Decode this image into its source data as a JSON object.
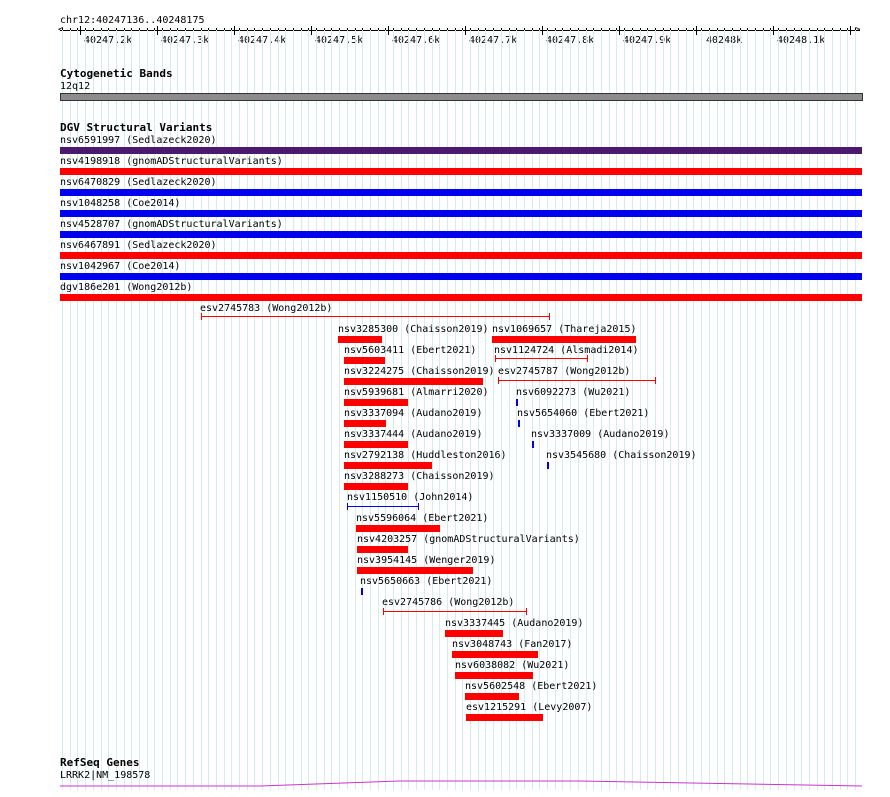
{
  "ruler": {
    "locus": "chr12:40247136..40248175",
    "labels": [
      "40247.2k",
      "40247.3k",
      "40247.4k",
      "40247.5k",
      "40247.6k",
      "40247.7k",
      "40247.8k",
      "40247.9k",
      "40248k",
      "40248.1k"
    ]
  },
  "tracks": {
    "cytoband": {
      "title": "Cytogenetic Bands",
      "band": "12q12"
    },
    "dgv": {
      "title": "DGV Structural Variants",
      "full_rows": [
        {
          "label": "nsv6591997 (Sedlazeck2020)",
          "color": "#4b1a6e"
        },
        {
          "label": "nsv4198918 (gnomADStructuralVariants)",
          "color": "#ff0000"
        },
        {
          "label": "nsv6470829 (Sedlazeck2020)",
          "color": "#0000ee"
        },
        {
          "label": "nsv1048258 (Coe2014)",
          "color": "#0000ee"
        },
        {
          "label": "nsv4528707 (gnomADStructuralVariants)",
          "color": "#0000ee"
        },
        {
          "label": "nsv6467891 (Sedlazeck2020)",
          "color": "#ff0000"
        },
        {
          "label": "nsv1042967 (Coe2014)",
          "color": "#0000ee"
        },
        {
          "label": "dgv186e201 (Wong2012b)",
          "color": "#ff0000"
        }
      ],
      "features": [
        {
          "label": "esv2745783 (Wong2012b)",
          "color": "#ff0000",
          "style": "line"
        },
        {
          "label": "nsv3285300 (Chaisson2019)",
          "color": "#ff0000",
          "style": "bar"
        },
        {
          "label": "nsv1069657 (Thareja2015)",
          "color": "#ff0000",
          "style": "bar"
        },
        {
          "label": "nsv5603411 (Ebert2021)",
          "color": "#ff0000",
          "style": "bar"
        },
        {
          "label": "nsv1124724 (Alsmadi2014)",
          "color": "#ff0000",
          "style": "line"
        },
        {
          "label": "nsv3224275 (Chaisson2019)",
          "color": "#ff0000",
          "style": "bar"
        },
        {
          "label": "esv2745787 (Wong2012b)",
          "color": "#ff0000",
          "style": "line"
        },
        {
          "label": "nsv5939681 (Almarri2020)",
          "color": "#ff0000",
          "style": "bar"
        },
        {
          "label": "nsv6092273 (Wu2021)",
          "color": "#0000ee",
          "style": "bar"
        },
        {
          "label": "nsv3337094 (Audano2019)",
          "color": "#ff0000",
          "style": "bar"
        },
        {
          "label": "nsv5654060 (Ebert2021)",
          "color": "#0000ee",
          "style": "bar"
        },
        {
          "label": "nsv3337444 (Audano2019)",
          "color": "#ff0000",
          "style": "bar"
        },
        {
          "label": "nsv3337009 (Audano2019)",
          "color": "#0000ee",
          "style": "bar"
        },
        {
          "label": "nsv2792138 (Huddleston2016)",
          "color": "#ff0000",
          "style": "bar"
        },
        {
          "label": "nsv3545680 (Chaisson2019)",
          "color": "#0000ee",
          "style": "bar"
        },
        {
          "label": "nsv3288273 (Chaisson2019)",
          "color": "#ff0000",
          "style": "bar"
        },
        {
          "label": "nsv1150510 (John2014)",
          "color": "#0000ee",
          "style": "line"
        },
        {
          "label": "nsv5596064 (Ebert2021)",
          "color": "#ff0000",
          "style": "bar"
        },
        {
          "label": "nsv4203257 (gnomADStructuralVariants)",
          "color": "#ff0000",
          "style": "bar"
        },
        {
          "label": "nsv3954145 (Wenger2019)",
          "color": "#ff0000",
          "style": "bar"
        },
        {
          "label": "nsv5650663 (Ebert2021)",
          "color": "#0000ee",
          "style": "bar"
        },
        {
          "label": "esv2745786 (Wong2012b)",
          "color": "#ff0000",
          "style": "line"
        },
        {
          "label": "nsv3337445 (Audano2019)",
          "color": "#ff0000",
          "style": "bar"
        },
        {
          "label": "nsv3048743 (Fan2017)",
          "color": "#ff0000",
          "style": "bar"
        },
        {
          "label": "nsv6038082 (Wu2021)",
          "color": "#ff0000",
          "style": "bar"
        },
        {
          "label": "nsv5602548 (Ebert2021)",
          "color": "#ff0000",
          "style": "bar"
        },
        {
          "label": "esv1215291 (Levy2007)",
          "color": "#ff0000",
          "style": "bar"
        }
      ]
    },
    "refseq": {
      "title": "RefSeq Genes",
      "gene": "LRRK2|NM_198578",
      "color": "#cc33cc"
    }
  }
}
